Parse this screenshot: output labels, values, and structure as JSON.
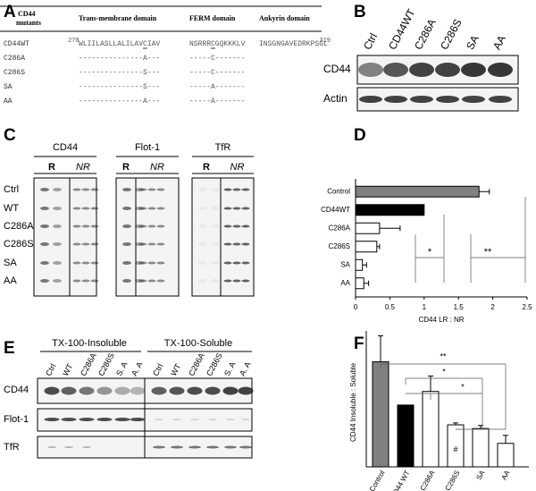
{
  "panel_labels": [
    "A",
    "B",
    "C",
    "D",
    "E",
    "F"
  ],
  "panel_a": {
    "header": {
      "mutants": [
        "CD44",
        "mutants"
      ],
      "domains": [
        "Trans-membrane domain",
        "FERM domain",
        "Ankyrin domain"
      ]
    },
    "start_residue": "270",
    "end_residue": "319",
    "rows": [
      {
        "name": "CD44WT",
        "tm": "WLIILASLLALILAVCIAV",
        "ferm": "NSRRRCGQKKKLV",
        "ankyrin": "INSGNGAVEDRKPSGL"
      },
      {
        "name": "C286A",
        "tm": "---------------A---",
        "ferm": "-----C-------"
      },
      {
        "name": "C286S",
        "tm": "---------------S---",
        "ferm": "-----C-------"
      },
      {
        "name": "SA",
        "tm": "---------------S---",
        "ferm": "-----A-------"
      },
      {
        "name": "AA",
        "tm": "---------------A---",
        "ferm": "-----A-------"
      }
    ]
  },
  "panel_b": {
    "lanes": [
      "Ctrl",
      "CD44WT",
      "C286A",
      "C286S",
      "SA",
      "AA"
    ],
    "rows": [
      "CD44",
      "Actin"
    ]
  },
  "panel_c": {
    "groups": [
      "CD44",
      "Flot-1",
      "TfR"
    ],
    "fractions": [
      "R",
      "NR"
    ],
    "rows": [
      "Ctrl",
      "WT",
      "C286A",
      "C286S",
      "SA",
      "AA"
    ]
  },
  "panel_e": {
    "headers": [
      "TX-100-Insoluble",
      "TX-100-Soluble"
    ],
    "lanes": [
      "Ctrl",
      "WT",
      "C286A",
      "C286S",
      "S. A",
      "A. A",
      "Ctrl",
      "WT",
      "C286A",
      "C286S",
      "S. A",
      "A. A"
    ],
    "rows": [
      "CD44",
      "Flot-1",
      "TfR"
    ]
  },
  "chart_data": [
    {
      "type": "bar",
      "orientation": "horizontal",
      "categories": [
        "Control",
        "CD44WT",
        "C286A",
        "C286S",
        "SA",
        "AA"
      ],
      "values": [
        1.8,
        1,
        0.35,
        0.31,
        0.1,
        0.12
      ],
      "errors": [
        0.15,
        null,
        0.3,
        0.04,
        0.06,
        0.07
      ],
      "colors": [
        "#808080",
        "#000000",
        "#ffffff",
        "#ffffff",
        "#ffffff",
        "#ffffff"
      ],
      "xlim": [
        0,
        2.5
      ],
      "xticks": [
        0,
        0.5,
        1,
        1.5,
        2,
        2.5
      ],
      "xlabel": "CD44 LR : NR",
      "annotations": [
        "*",
        "**"
      ]
    },
    {
      "type": "bar",
      "orientation": "vertical",
      "categories": [
        "Control",
        "CD44 WT",
        "C286A",
        "C286S",
        "SA",
        "AA"
      ],
      "values": [
        1.7,
        1,
        1.22,
        0.68,
        0.62,
        0.38
      ],
      "errors": [
        0.42,
        null,
        0.25,
        0.03,
        0.05,
        0.13
      ],
      "colors": [
        "#808080",
        "#000000",
        "#ffffff",
        "#ffffff",
        "#ffffff",
        "#ffffff"
      ],
      "ylim": [
        0,
        2.2
      ],
      "ylabel": "CD44 Insoluble : Soluble",
      "annotations": [
        "**",
        "*",
        "*",
        "#"
      ]
    }
  ]
}
